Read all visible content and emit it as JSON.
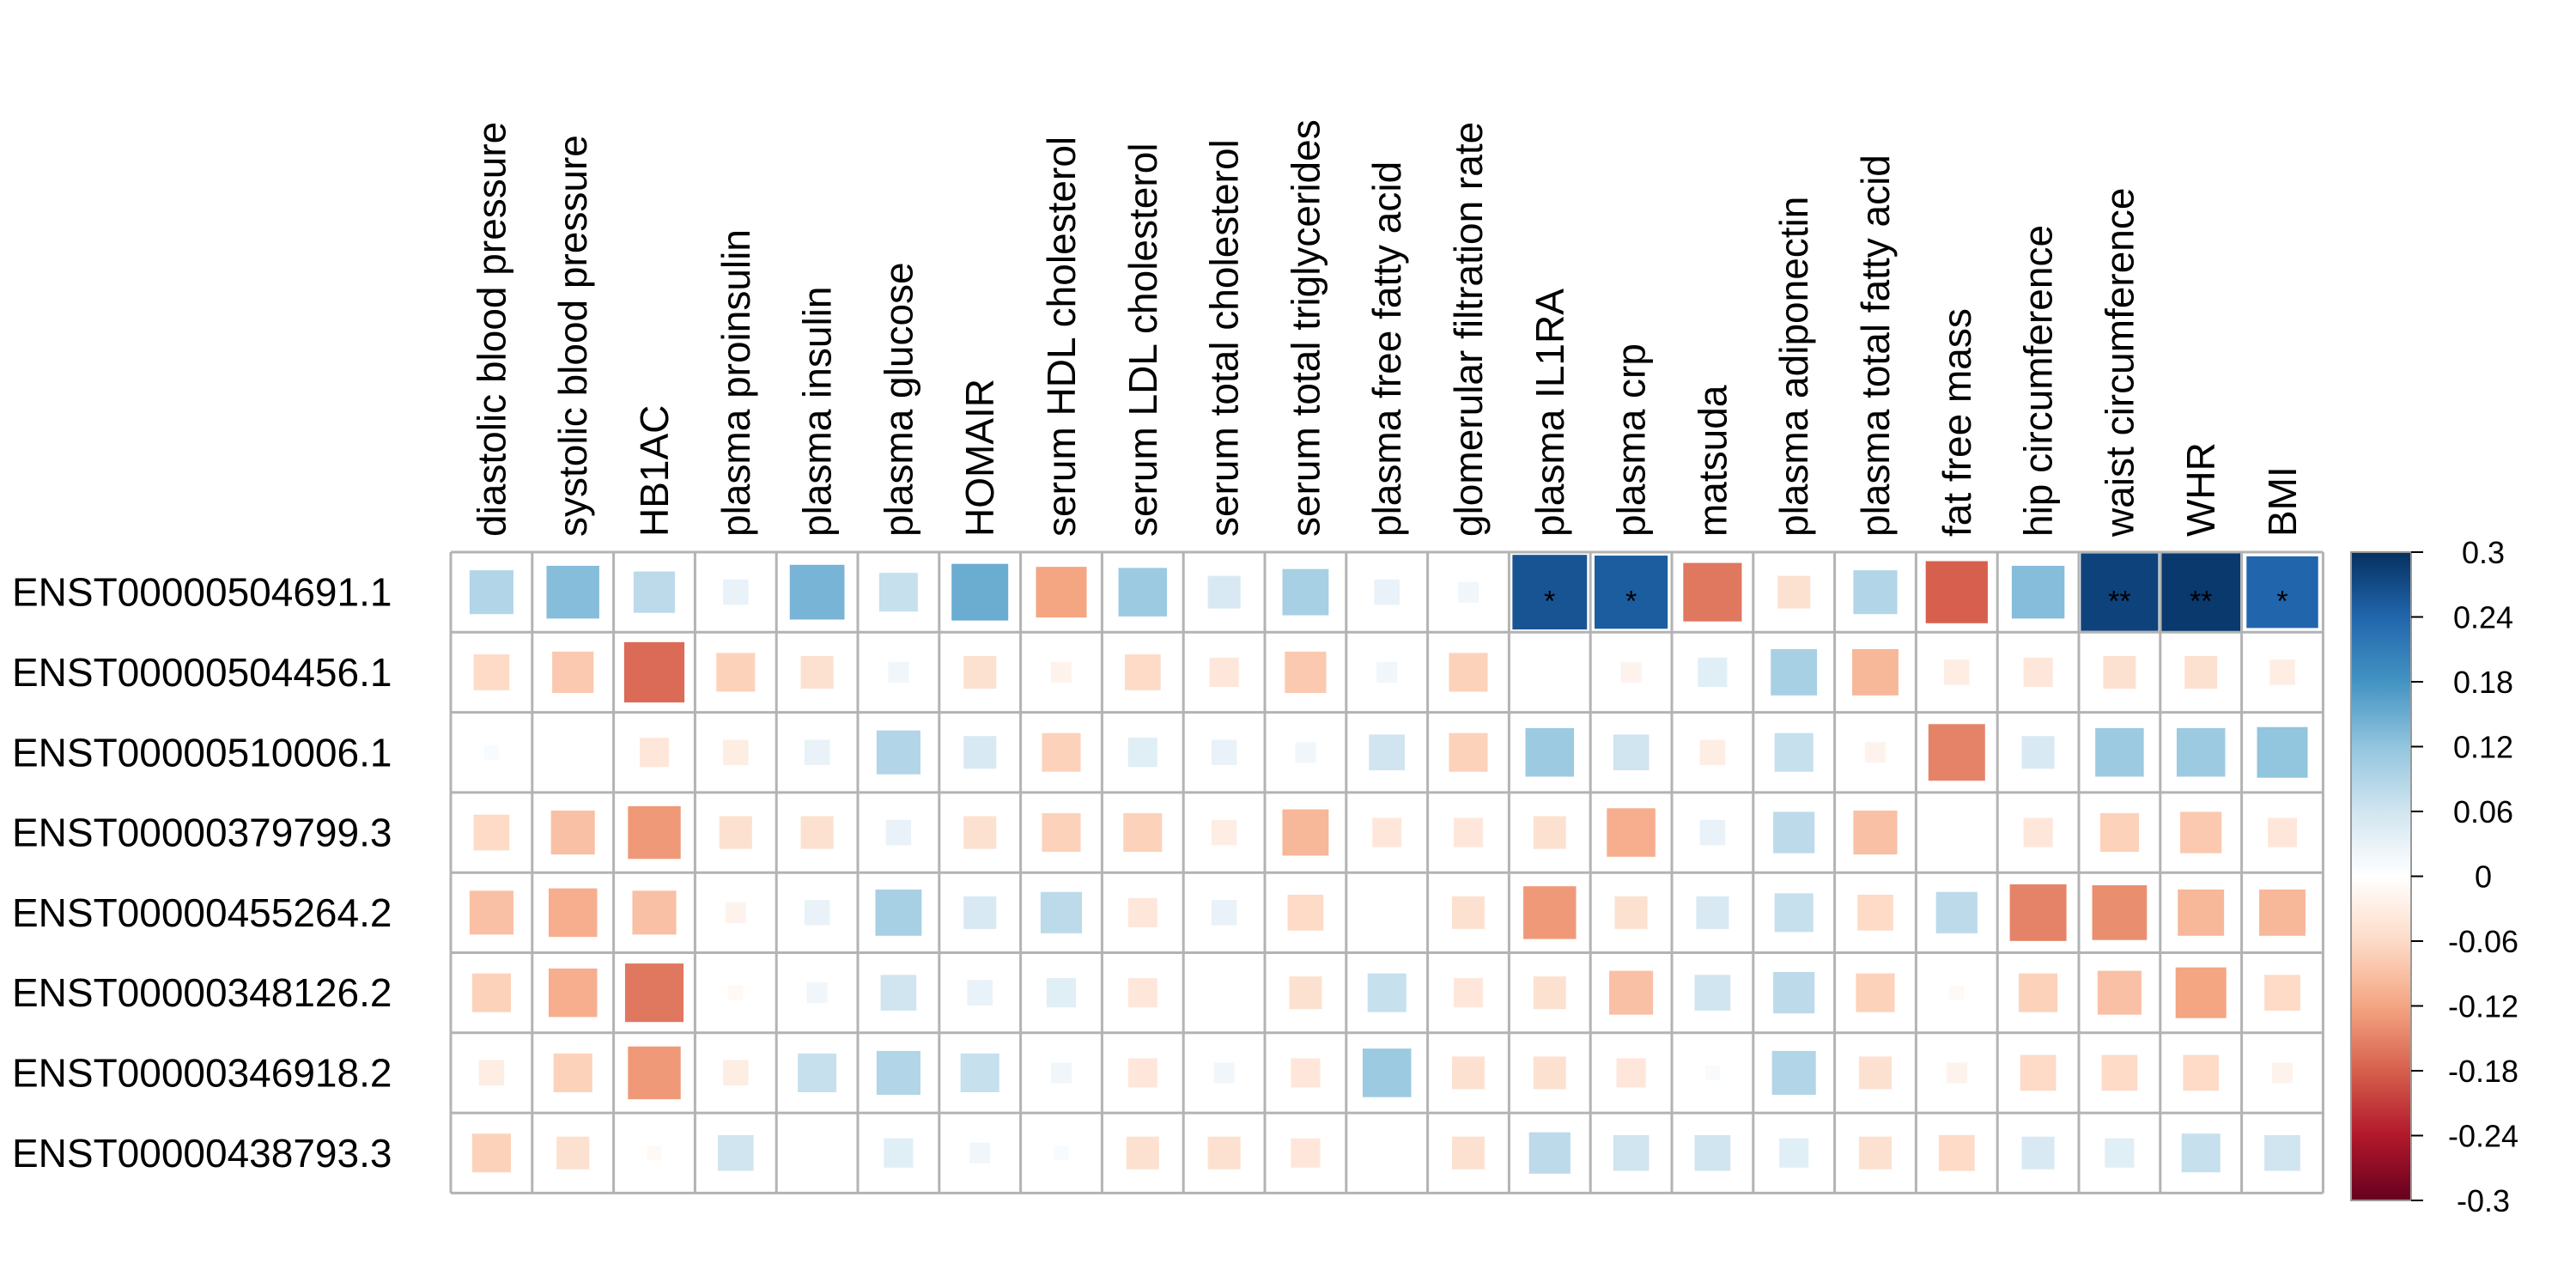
{
  "chart_data": {
    "type": "heatmap",
    "title": "",
    "xlabel": "",
    "ylabel": "",
    "columns": [
      "diastolic blood pressure",
      "systolic blood pressure",
      "HB1AC",
      "plasma proinsulin",
      "plasma insulin",
      "plasma glucose",
      "HOMAIR",
      "serum HDL cholesterol",
      "serum LDL cholesterol",
      "serum total cholesterol",
      "serum total triglycerides",
      "plasma free fatty acid",
      "glomerular filtration rate",
      "plasma IL1RA",
      "plasma crp",
      "matsuda",
      "plasma adiponectin",
      "plasma total fatty acid",
      "fat free mass",
      "hip circumference",
      "waist circumference",
      "WHR",
      "BMI"
    ],
    "rows": [
      "ENST00000504691.1",
      "ENST00000504456.1",
      "ENST00000510006.1",
      "ENST00000379799.3",
      "ENST00000455264.2",
      "ENST00000348126.2",
      "ENST00000346918.2",
      "ENST00000438793.3"
    ],
    "values": [
      [
        0.09,
        0.13,
        0.08,
        0.03,
        0.14,
        0.07,
        0.15,
        -0.12,
        0.11,
        0.05,
        0.1,
        0.03,
        0.02,
        0.26,
        0.25,
        -0.16,
        -0.05,
        0.09,
        -0.18,
        0.13,
        0.28,
        0.29,
        0.24
      ],
      [
        -0.06,
        -0.08,
        -0.17,
        -0.07,
        -0.05,
        0.02,
        -0.05,
        -0.02,
        -0.06,
        -0.04,
        -0.08,
        0.02,
        -0.07,
        0.0,
        -0.02,
        0.04,
        0.1,
        -0.1,
        -0.03,
        -0.04,
        -0.05,
        -0.05,
        -0.03
      ],
      [
        0.01,
        0.0,
        -0.04,
        -0.03,
        0.03,
        0.09,
        0.05,
        -0.07,
        0.04,
        0.03,
        0.02,
        0.06,
        -0.07,
        0.11,
        0.06,
        -0.03,
        0.07,
        -0.02,
        -0.15,
        0.05,
        0.11,
        0.11,
        0.12
      ],
      [
        -0.06,
        -0.09,
        -0.13,
        -0.05,
        -0.05,
        0.03,
        -0.05,
        -0.07,
        -0.07,
        -0.03,
        -0.1,
        -0.04,
        -0.04,
        -0.05,
        -0.11,
        0.03,
        0.08,
        -0.09,
        0.0,
        -0.04,
        -0.07,
        -0.08,
        -0.04
      ],
      [
        -0.09,
        -0.11,
        -0.09,
        -0.02,
        0.03,
        0.1,
        0.05,
        0.08,
        -0.04,
        0.03,
        -0.06,
        0.0,
        -0.05,
        -0.13,
        -0.05,
        0.05,
        0.07,
        -0.06,
        0.08,
        -0.15,
        -0.14,
        -0.1,
        -0.1
      ],
      [
        -0.07,
        -0.11,
        -0.16,
        -0.01,
        0.02,
        0.06,
        0.03,
        0.04,
        -0.04,
        0.0,
        -0.05,
        0.07,
        -0.04,
        -0.05,
        -0.09,
        0.06,
        0.08,
        -0.07,
        -0.01,
        -0.07,
        -0.09,
        -0.12,
        -0.06
      ],
      [
        -0.03,
        -0.07,
        -0.13,
        -0.03,
        0.07,
        0.09,
        0.07,
        0.02,
        -0.04,
        0.02,
        -0.04,
        0.11,
        -0.05,
        -0.05,
        -0.04,
        0.01,
        0.09,
        -0.05,
        -0.02,
        -0.06,
        -0.06,
        -0.06,
        -0.02
      ],
      [
        -0.07,
        -0.05,
        -0.01,
        0.06,
        0.0,
        0.04,
        0.02,
        0.01,
        -0.05,
        -0.05,
        -0.04,
        0.0,
        -0.05,
        0.08,
        0.06,
        0.06,
        0.04,
        -0.05,
        -0.06,
        0.05,
        0.04,
        0.07,
        0.06
      ]
    ],
    "significance": [
      [
        "",
        "",
        "",
        "",
        "",
        "",
        "",
        "",
        "",
        "",
        "",
        "",
        "",
        "*",
        "*",
        "",
        "",
        "",
        "",
        "",
        "**",
        "**",
        "*"
      ],
      [
        "",
        "",
        "",
        "",
        "",
        "",
        "",
        "",
        "",
        "",
        "",
        "",
        "",
        "",
        "",
        "",
        "",
        "",
        "",
        "",
        "",
        "",
        ""
      ],
      [
        "",
        "",
        "",
        "",
        "",
        "",
        "",
        "",
        "",
        "",
        "",
        "",
        "",
        "",
        "",
        "",
        "",
        "",
        "",
        "",
        "",
        "",
        ""
      ],
      [
        "",
        "",
        "",
        "",
        "",
        "",
        "",
        "",
        "",
        "",
        "",
        "",
        "",
        "",
        "",
        "",
        "",
        "",
        "",
        "",
        "",
        "",
        ""
      ],
      [
        "",
        "",
        "",
        "",
        "",
        "",
        "",
        "",
        "",
        "",
        "",
        "",
        "",
        "",
        "",
        "",
        "",
        "",
        "",
        "",
        "",
        "",
        ""
      ],
      [
        "",
        "",
        "",
        "",
        "",
        "",
        "",
        "",
        "",
        "",
        "",
        "",
        "",
        "",
        "",
        "",
        "",
        "",
        "",
        "",
        "",
        "",
        ""
      ],
      [
        "",
        "",
        "",
        "",
        "",
        "",
        "",
        "",
        "",
        "",
        "",
        "",
        "",
        "",
        "",
        "",
        "",
        "",
        "",
        "",
        "",
        "",
        ""
      ],
      [
        "",
        "",
        "",
        "",
        "",
        "",
        "",
        "",
        "",
        "",
        "",
        "",
        "",
        "",
        "",
        "",
        "",
        "",
        "",
        "",
        "",
        "",
        ""
      ]
    ],
    "color_scale": {
      "min": -0.3,
      "max": 0.3,
      "stops": [
        "#67001f",
        "#b2182b",
        "#d6604d",
        "#f4a582",
        "#fddbc7",
        "#ffffff",
        "#d1e5f0",
        "#92c5de",
        "#4393c3",
        "#2166ac",
        "#053061"
      ],
      "ticks": [
        "0.3",
        "0.24",
        "0.18",
        "0.12",
        "0.06",
        "0",
        "-0.06",
        "-0.12",
        "-0.18",
        "-0.24",
        "-0.3"
      ]
    },
    "legend_placement": "right",
    "grid": true
  }
}
